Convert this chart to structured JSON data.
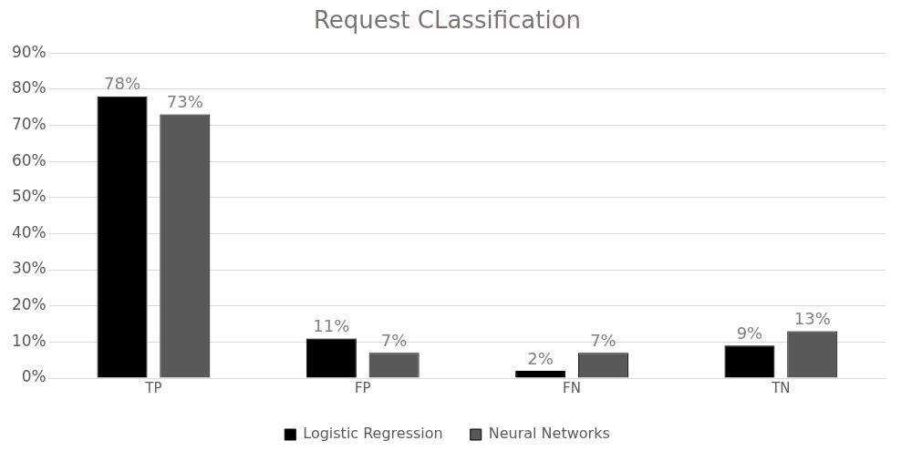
{
  "chart_data": {
    "type": "bar",
    "title": "Request CLassification",
    "categories": [
      "TP",
      "FP",
      "FN",
      "TN"
    ],
    "series": [
      {
        "name": "Logistic Regression",
        "color": "#000000",
        "values": [
          78,
          11,
          2,
          9
        ],
        "value_labels": [
          "78%",
          "11%",
          "2%",
          "9%"
        ]
      },
      {
        "name": "Neural Networks",
        "color": "#595959",
        "values": [
          73,
          7,
          7,
          13
        ],
        "value_labels": [
          "73%",
          "7%",
          "7%",
          "13%"
        ]
      }
    ],
    "ylim": [
      0,
      90
    ],
    "yticks": [
      {
        "value": 0,
        "label": "0%"
      },
      {
        "value": 10,
        "label": "10%"
      },
      {
        "value": 20,
        "label": "20%"
      },
      {
        "value": 30,
        "label": "30%"
      },
      {
        "value": 40,
        "label": "40%"
      },
      {
        "value": 50,
        "label": "50%"
      },
      {
        "value": 60,
        "label": "60%"
      },
      {
        "value": 70,
        "label": "70%"
      },
      {
        "value": 80,
        "label": "80%"
      },
      {
        "value": 90,
        "label": "90%"
      }
    ],
    "grid": "y",
    "legend": "bottom"
  }
}
